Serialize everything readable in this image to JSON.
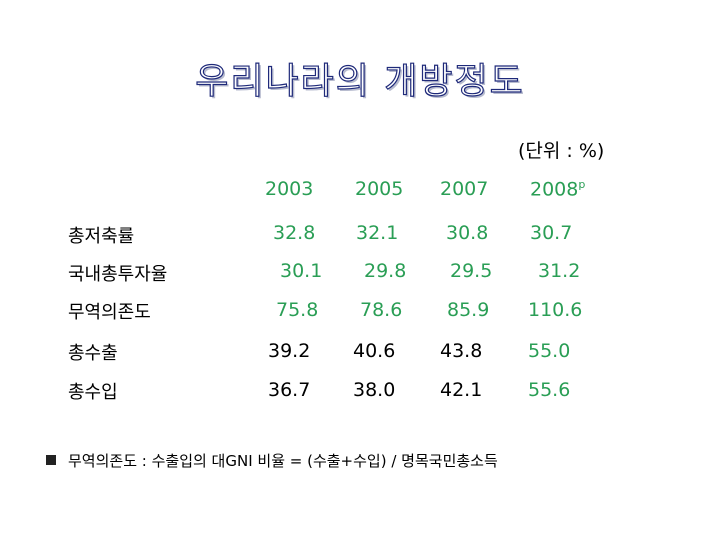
{
  "title": "우리나라의 개방정도",
  "unit": "(단위 : %)",
  "years": [
    "2003",
    "2005",
    "2007",
    "2008"
  ],
  "year_superscript": "p",
  "rows": [
    {
      "label": "총저축률",
      "values": [
        "32.8",
        "32.1",
        "30.8",
        "30.7"
      ]
    },
    {
      "label": "국내총투자율",
      "values": [
        "30.1",
        "29.8",
        "29.5",
        "31.2"
      ]
    },
    {
      "label": "무역의존도",
      "values": [
        "75.8",
        "78.6",
        "85.9",
        "110.6"
      ]
    },
    {
      "label": "총수출",
      "values": [
        "39.2",
        "40.6",
        "43.8",
        "55.0"
      ]
    },
    {
      "label": "총수입",
      "values": [
        "36.7",
        "38.0",
        "42.1",
        "55.6"
      ]
    }
  ],
  "colors": {
    "green": "#2a9e55",
    "title_outline": "#1f2a7a"
  },
  "note": "무역의존도 : 수출입의 대GNI 비율 = (수출+수입) / 명목국민총소득"
}
